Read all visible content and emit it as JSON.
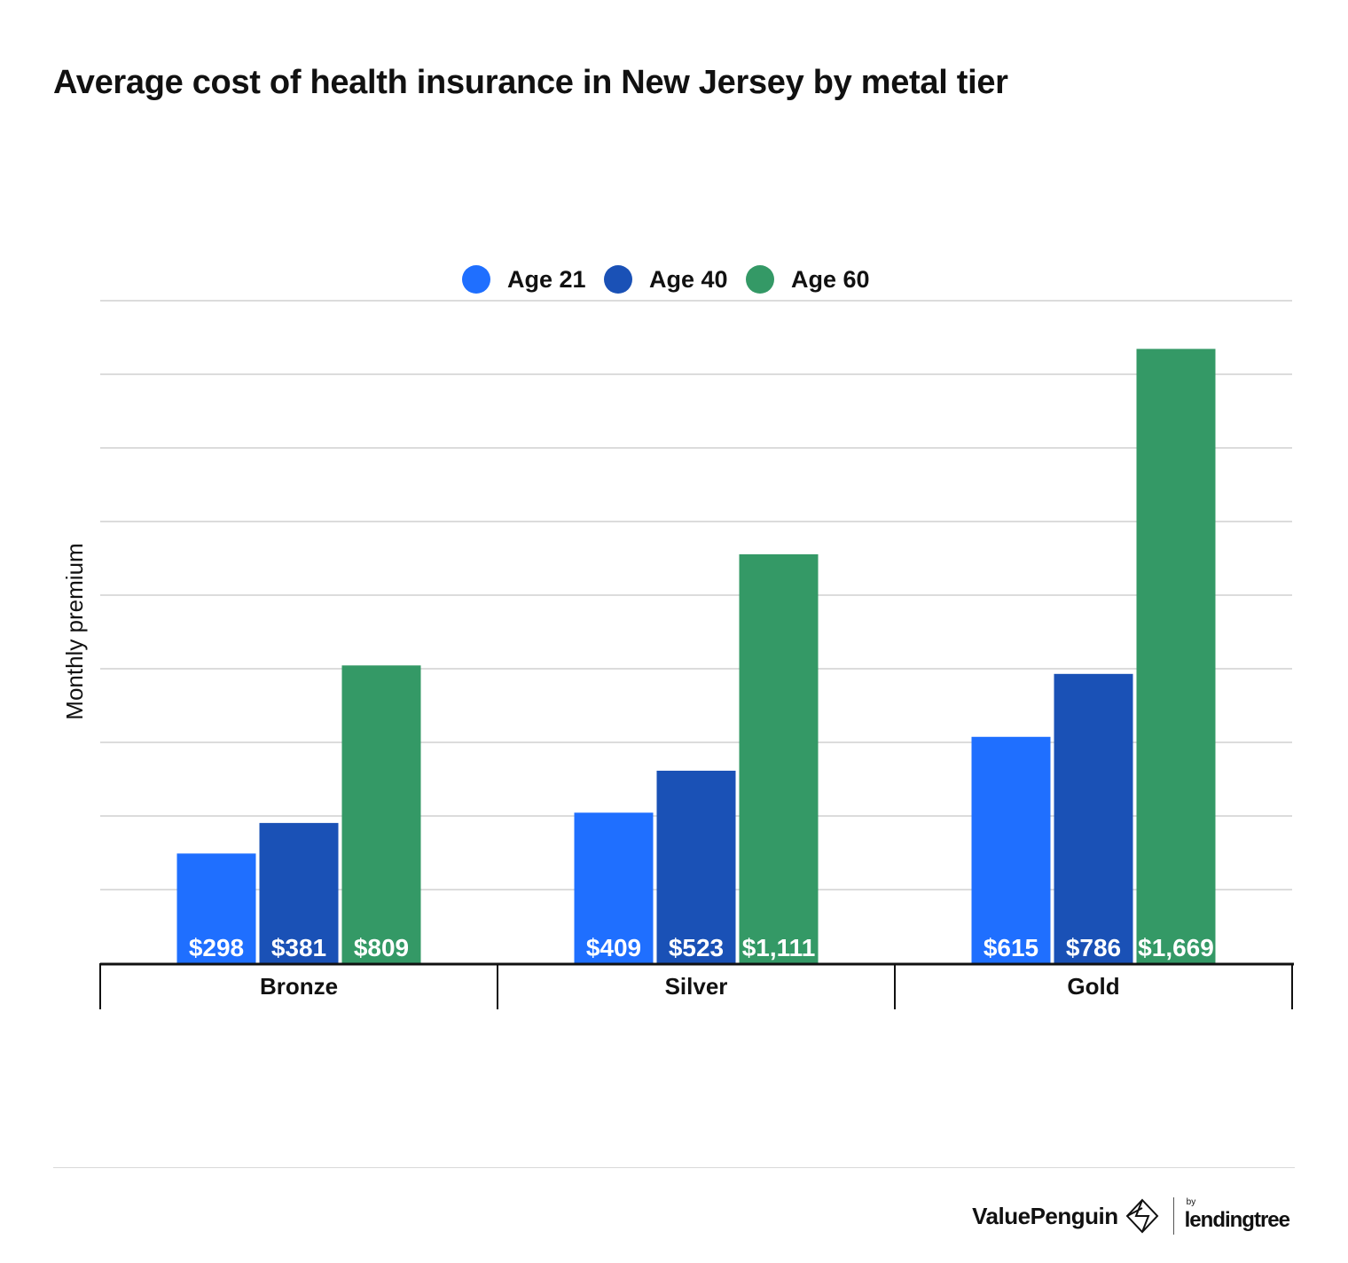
{
  "colors": {
    "age21": "#1f6fff",
    "age40": "#1a51b6",
    "age60": "#349966",
    "grid": "#d0d0d0",
    "axis": "#111111"
  },
  "chart_data": {
    "type": "bar",
    "title": "Average cost of health insurance in New Jersey by metal tier",
    "xlabel": "",
    "ylabel": "Monthly premium",
    "categories": [
      "Bronze",
      "Silver",
      "Gold"
    ],
    "series": [
      {
        "name": "Age 21",
        "values": [
          298,
          409,
          615
        ],
        "labels": [
          "$298",
          "$409",
          "$615"
        ],
        "color": "#1f6fff"
      },
      {
        "name": "Age 40",
        "values": [
          381,
          523,
          786
        ],
        "labels": [
          "$381",
          "$523",
          "$786"
        ],
        "color": "#1a51b6"
      },
      {
        "name": "Age 60",
        "values": [
          809,
          1111,
          1669
        ],
        "labels": [
          "$809",
          "$1,111",
          "$1,669"
        ],
        "color": "#349966"
      }
    ],
    "ylim": [
      0,
      1800
    ],
    "gridlines": 9,
    "grid": true,
    "legend": "top-center"
  },
  "footer": {
    "brand_valuepenguin": "ValuePenguin",
    "brand_by": "by",
    "brand_lendingtree": "lendingtree"
  }
}
